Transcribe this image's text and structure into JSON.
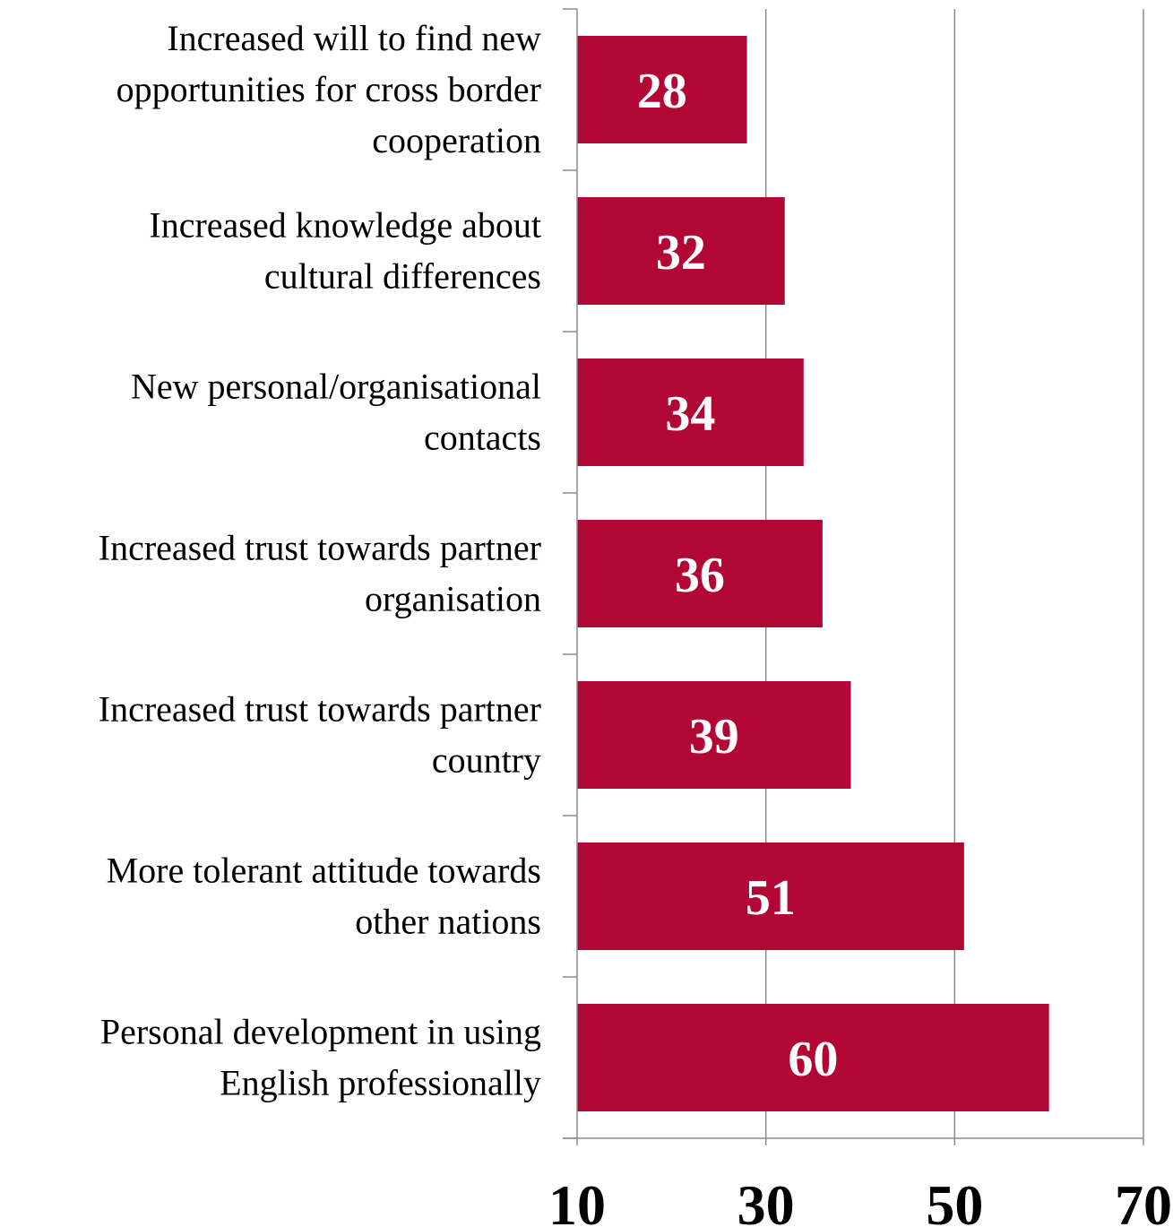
{
  "chart_data": {
    "type": "bar",
    "orientation": "horizontal",
    "title": "",
    "xlabel": "",
    "ylabel": "",
    "categories": [
      "Increased will to find new opportunities for cross border cooperation",
      "Increased knowledge about cultural differences",
      "New personal/organisational contacts",
      "Increased trust towards partner organisation",
      "Increased trust towards partner country",
      "More tolerant attitude towards other nations",
      "Personal development in using English professionally"
    ],
    "category_lines": [
      [
        "Increased will to find new",
        "opportunities for cross border",
        "cooperation"
      ],
      [
        "Increased knowledge about",
        "cultural differences"
      ],
      [
        "New personal/organisational",
        "contacts"
      ],
      [
        "Increased trust towards partner",
        "organisation"
      ],
      [
        "Increased trust towards partner",
        "country"
      ],
      [
        "More tolerant attitude towards",
        "other nations"
      ],
      [
        "Personal development in using",
        "English professionally"
      ]
    ],
    "values": [
      28,
      32,
      34,
      36,
      39,
      51,
      60
    ],
    "data_labels": [
      "28",
      "32",
      "34",
      "36",
      "39",
      "51",
      "60"
    ],
    "xlim": [
      10,
      70
    ],
    "xticks": [
      "10",
      "30",
      "50",
      "70"
    ],
    "grid": "vertical",
    "legend": "none",
    "colors": {
      "bar": "#B20634",
      "gridline": "#8C8C8C",
      "axis": "#8C8C8C",
      "text": "#000000",
      "bar_text": "#FFFFFF"
    }
  }
}
